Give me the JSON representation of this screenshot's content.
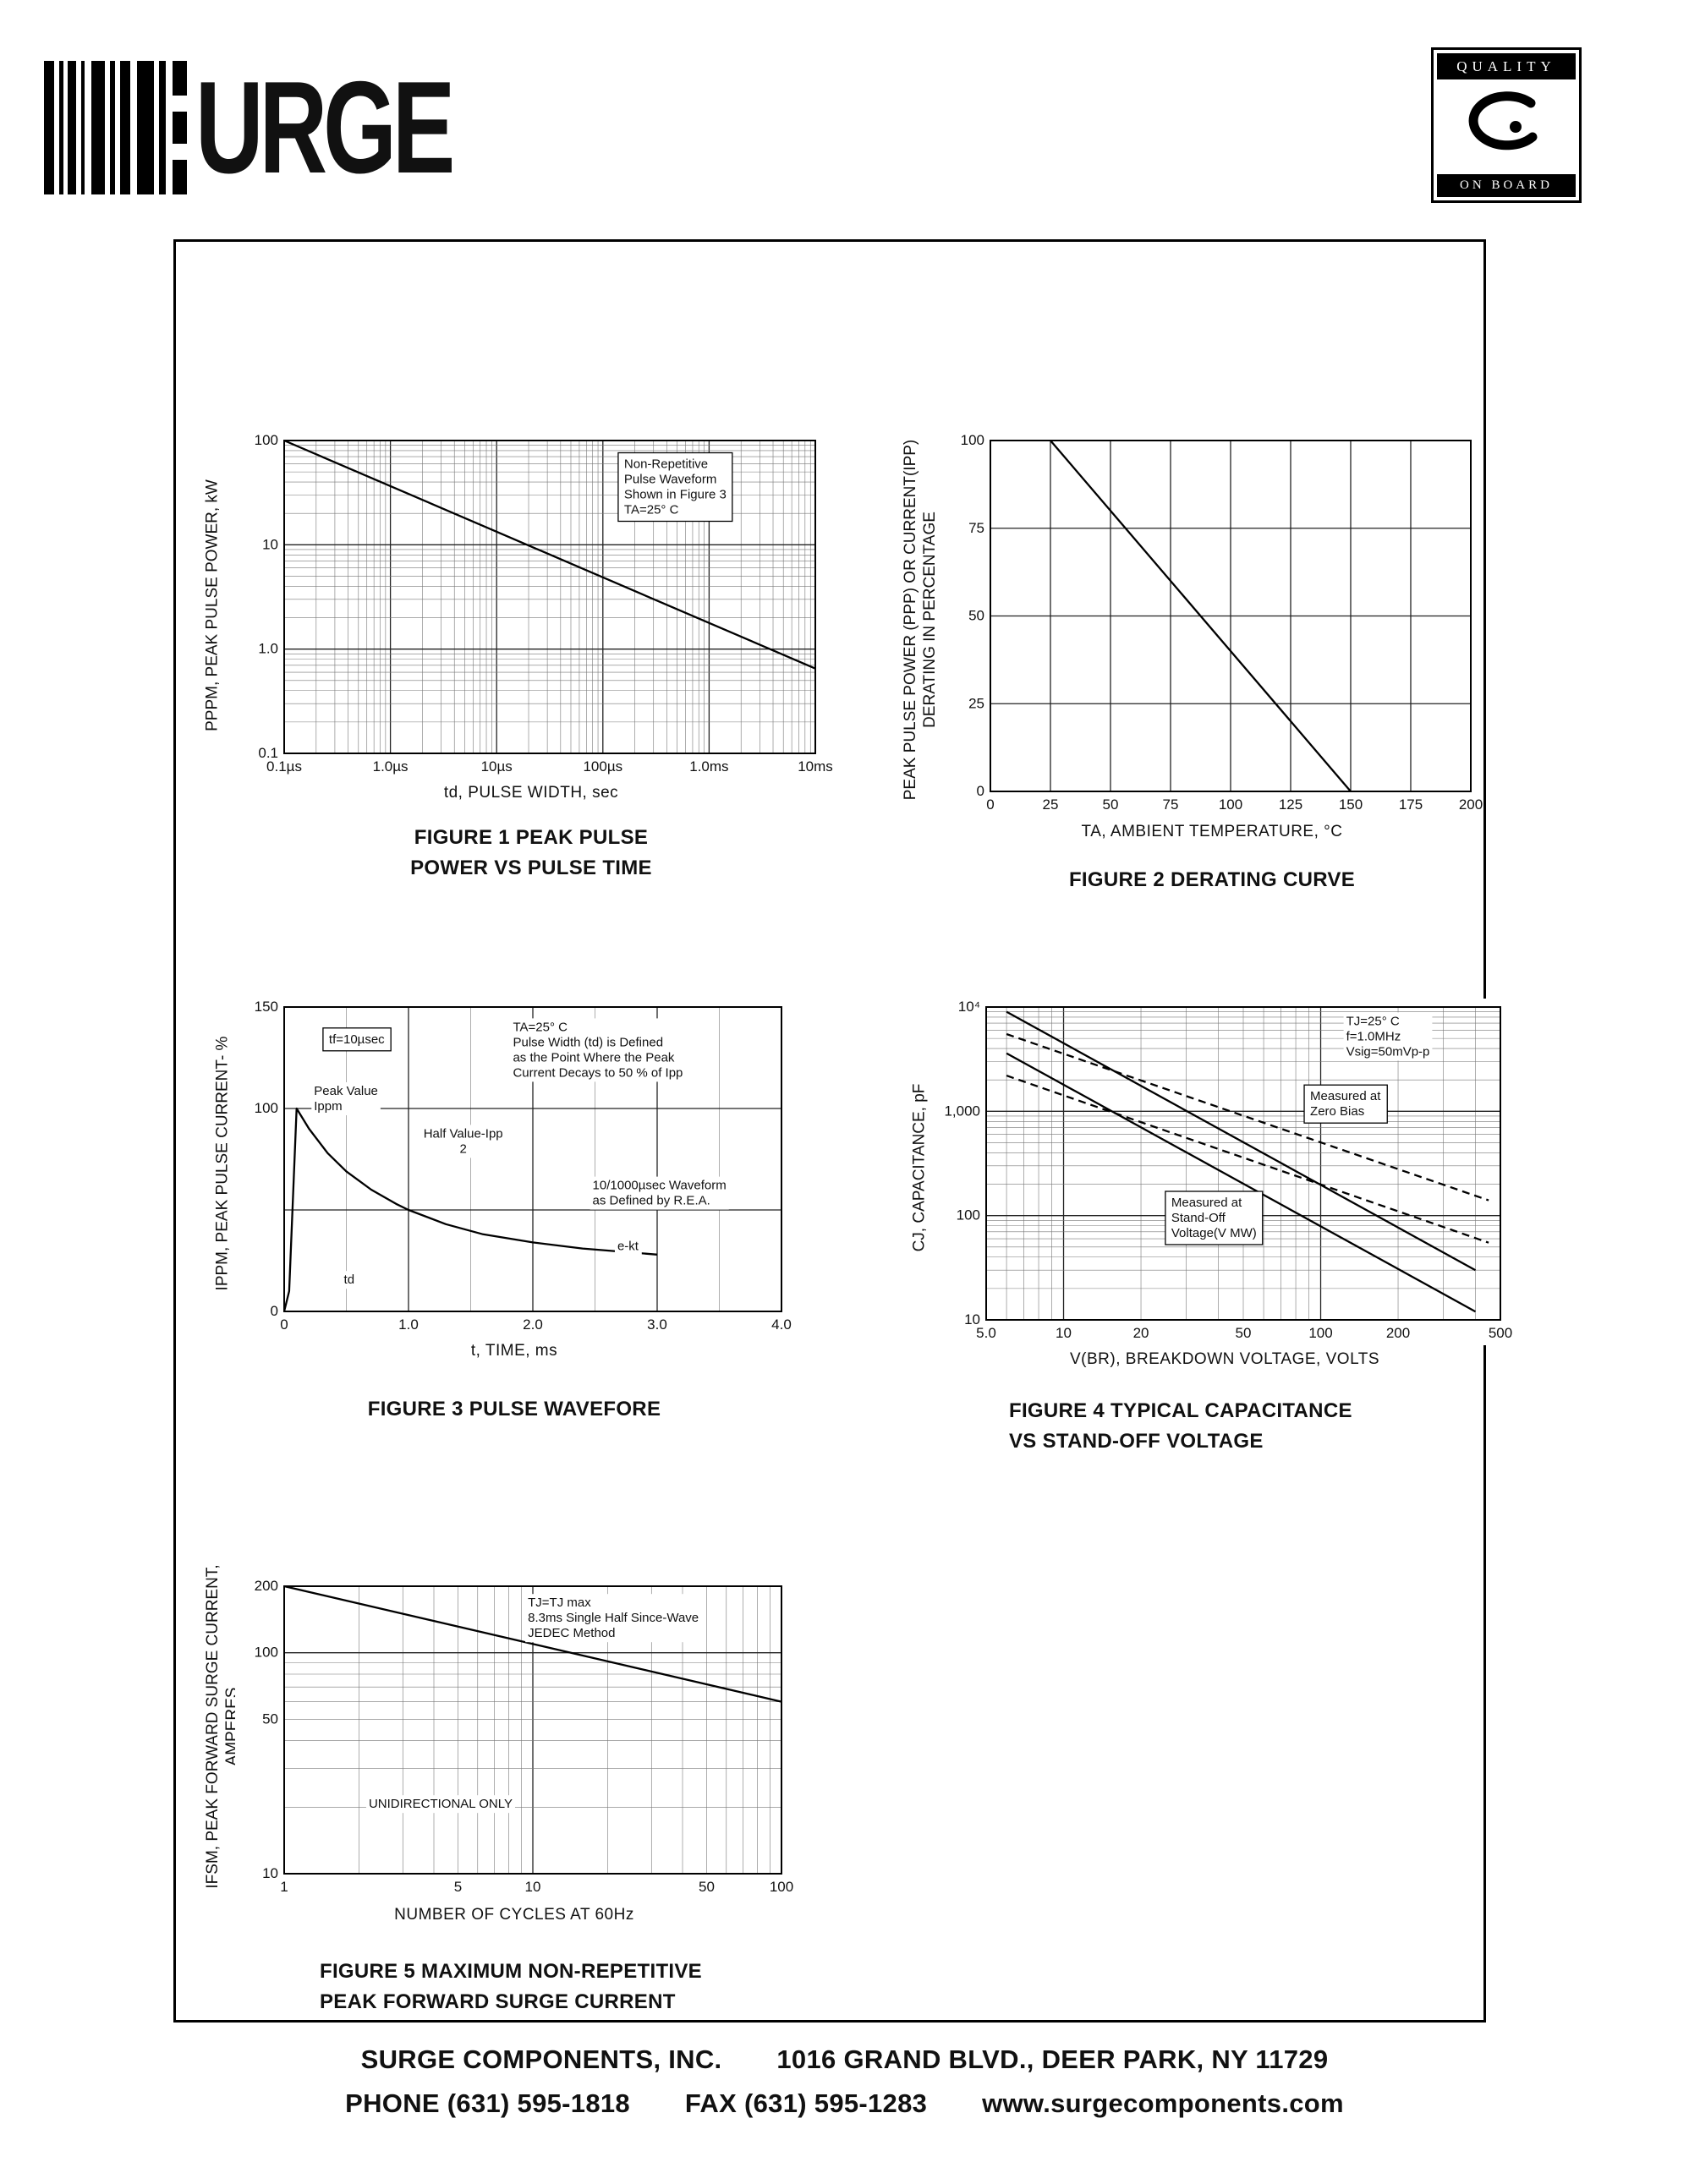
{
  "header": {
    "logo_text": "URGE",
    "badge_top": "QUALITY",
    "badge_bottom": "ON BOARD"
  },
  "footer": {
    "company": "SURGE COMPONENTS, INC.",
    "address": "1016 GRAND BLVD., DEER PARK, NY  11729",
    "phone": "PHONE (631) 595-1818",
    "fax": "FAX (631) 595-1283",
    "website": "www.surgecomponents.com"
  },
  "chart_data": [
    {
      "type": "line",
      "title": "FIGURE 1 PEAK PULSE POWER VS PULSE TIME",
      "caption_lines": [
        "FIGURE 1 PEAK PULSE",
        "POWER VS PULSE TIME"
      ],
      "xlabel": "td, PULSE WIDTH, sec",
      "ylabel_lines": [
        "PPPM, PEAK PULSE POWER, kW"
      ],
      "x": {
        "scale": "log",
        "min": 1e-07,
        "max": 0.01,
        "ticks": [
          {
            "v": 1e-07,
            "l": "0.1µs"
          },
          {
            "v": 1e-06,
            "l": "1.0µs"
          },
          {
            "v": 1e-05,
            "l": "10µs"
          },
          {
            "v": 0.0001,
            "l": "100µs"
          },
          {
            "v": 0.001,
            "l": "1.0ms"
          },
          {
            "v": 0.01,
            "l": "10ms"
          }
        ]
      },
      "y": {
        "scale": "log",
        "min": 0.1,
        "max": 100,
        "ticks": [
          {
            "v": 0.1,
            "l": "0.1"
          },
          {
            "v": 1,
            "l": "1.0"
          },
          {
            "v": 10,
            "l": "10"
          },
          {
            "v": 100,
            "l": "100"
          }
        ]
      },
      "series": [
        {
          "name": "non-repetitive peak pulse power",
          "dash": false,
          "points": [
            [
              1e-07,
              100
            ],
            [
              0.01,
              0.65
            ]
          ]
        }
      ],
      "annotations": [
        {
          "fx": 0.64,
          "fy": 0.05,
          "box": true,
          "lines": [
            "Non-Repetitive",
            "Pulse Waveform",
            "Shown in Figure 3",
            "TA=25° C"
          ]
        }
      ]
    },
    {
      "type": "line",
      "title": "FIGURE 2 DERATING CURVE",
      "caption_lines": [
        "FIGURE 2 DERATING CURVE"
      ],
      "xlabel": "TA, AMBIENT  TEMPERATURE, °C",
      "ylabel_lines": [
        "PEAK PULSE POWER (PPP) OR CURRENT(IPP)",
        "DERATING IN PERCENTAGE"
      ],
      "x": {
        "scale": "linear",
        "min": 0,
        "max": 200,
        "grid": 25,
        "majorEvery": 25,
        "ticks": [
          {
            "v": 0,
            "l": "0"
          },
          {
            "v": 25,
            "l": "25"
          },
          {
            "v": 50,
            "l": "50"
          },
          {
            "v": 75,
            "l": "75"
          },
          {
            "v": 100,
            "l": "100"
          },
          {
            "v": 125,
            "l": "125"
          },
          {
            "v": 150,
            "l": "150"
          },
          {
            "v": 175,
            "l": "175"
          },
          {
            "v": 200,
            "l": "200"
          }
        ]
      },
      "y": {
        "scale": "linear",
        "min": 0,
        "max": 100,
        "grid": 25,
        "majorEvery": 25,
        "ticks": [
          {
            "v": 0,
            "l": "0"
          },
          {
            "v": 25,
            "l": "25"
          },
          {
            "v": 50,
            "l": "50"
          },
          {
            "v": 75,
            "l": "75"
          },
          {
            "v": 100,
            "l": "100"
          }
        ]
      },
      "series": [
        {
          "name": "derating curve",
          "dash": false,
          "points": [
            [
              25,
              100
            ],
            [
              150,
              0
            ]
          ]
        }
      ],
      "annotations": []
    },
    {
      "type": "line",
      "title": "FIGURE 3 PULSE WAVEFORE",
      "caption_lines": [
        "FIGURE 3 PULSE WAVEFORE"
      ],
      "xlabel": "t, TIME, ms",
      "ylabel_lines": [
        "IPPM, PEAK PULSE CURRENT- %"
      ],
      "x": {
        "scale": "linear",
        "min": 0,
        "max": 4,
        "grid": 0.5,
        "majorEvery": 1,
        "ticks": [
          {
            "v": 0,
            "l": "0"
          },
          {
            "v": 1,
            "l": "1.0"
          },
          {
            "v": 2,
            "l": "2.0"
          },
          {
            "v": 3,
            "l": "3.0"
          },
          {
            "v": 4,
            "l": "4.0"
          }
        ]
      },
      "y": {
        "scale": "linear",
        "min": 0,
        "max": 150,
        "grid": 50,
        "majorEvery": 50,
        "ticks": [
          {
            "v": 0,
            "l": "0"
          },
          {
            "v": 100,
            "l": "100"
          },
          {
            "v": 150,
            "l": "150"
          }
        ]
      },
      "series": [
        {
          "name": "10/1000µsec pulse waveform",
          "dash": false,
          "points": [
            [
              0,
              0
            ],
            [
              0.04,
              10
            ],
            [
              0.1,
              100
            ],
            [
              0.2,
              90
            ],
            [
              0.35,
              78
            ],
            [
              0.5,
              69
            ],
            [
              0.7,
              60
            ],
            [
              0.9,
              53
            ],
            [
              1.0,
              50
            ],
            [
              1.3,
              43
            ],
            [
              1.6,
              38
            ],
            [
              2.0,
              34
            ],
            [
              2.4,
              31
            ],
            [
              2.8,
              29
            ],
            [
              3.0,
              28
            ]
          ]
        }
      ],
      "annotations": [
        {
          "fx": 0.09,
          "fy": 0.08,
          "box": true,
          "lines": [
            "tf=10µsec"
          ]
        },
        {
          "fx": 0.06,
          "fy": 0.25,
          "lines": [
            "Peak Value",
            "Ippm"
          ]
        },
        {
          "fx": 0.36,
          "fy": 0.39,
          "align": "center",
          "lines": [
            "Half Value-Ipp",
            "2"
          ]
        },
        {
          "fx": 0.46,
          "fy": 0.04,
          "lines": [
            "TA=25° C",
            "Pulse Width (td) is Defined",
            "as the Point Where the Peak",
            "Current Decays to 50 % of Ipp"
          ]
        },
        {
          "fx": 0.62,
          "fy": 0.56,
          "lines": [
            "10/1000µsec Waveform",
            "as Defined by R.E.A."
          ]
        },
        {
          "fx": 0.67,
          "fy": 0.76,
          "lines": [
            "e-kt"
          ]
        },
        {
          "fx": 0.12,
          "fy": 0.87,
          "lines": [
            "td"
          ]
        }
      ]
    },
    {
      "type": "line",
      "title": "FIGURE 4 TYPICAL CAPACITANCE VS STAND-OFF VOLTAGE",
      "caption_lines": [
        "FIGURE 4 TYPICAL CAPACITANCE",
        "VS STAND-OFF VOLTAGE"
      ],
      "xlabel": "V(BR), BREAKDOWN VOLTAGE, VOLTS",
      "ylabel_lines": [
        "CJ, CAPACITANCE, pF"
      ],
      "x": {
        "scale": "log",
        "min": 5,
        "max": 500,
        "ticks": [
          {
            "v": 5,
            "l": "5.0"
          },
          {
            "v": 10,
            "l": "10"
          },
          {
            "v": 20,
            "l": "20"
          },
          {
            "v": 50,
            "l": "50"
          },
          {
            "v": 100,
            "l": "100"
          },
          {
            "v": 200,
            "l": "200"
          },
          {
            "v": 500,
            "l": "500"
          }
        ]
      },
      "y": {
        "scale": "log",
        "min": 10,
        "max": 10000,
        "ticks": [
          {
            "v": 10,
            "l": "10"
          },
          {
            "v": 100,
            "l": "100"
          },
          {
            "v": 1000,
            "l": "1,000"
          },
          {
            "v": 10000,
            "l": "10⁴"
          }
        ]
      },
      "series": [
        {
          "name": "measured at zero bias (upper)",
          "dash": true,
          "points": [
            [
              6,
              5500
            ],
            [
              450,
              140
            ]
          ]
        },
        {
          "name": "measured at zero bias (lower)",
          "dash": true,
          "points": [
            [
              6,
              2200
            ],
            [
              450,
              55
            ]
          ]
        },
        {
          "name": "measured at stand-off voltage (upper)",
          "dash": false,
          "points": [
            [
              6,
              9000
            ],
            [
              400,
              30
            ]
          ]
        },
        {
          "name": "measured at stand-off voltage (lower)",
          "dash": false,
          "points": [
            [
              6,
              3600
            ],
            [
              400,
              12
            ]
          ]
        }
      ],
      "annotations": [
        {
          "fx": 0.7,
          "fy": 0.02,
          "lines": [
            "TJ=25° C",
            "f=1.0MHz",
            "Vsig=50mVp-p"
          ]
        },
        {
          "fx": 0.63,
          "fy": 0.26,
          "box": true,
          "lines": [
            "Measured at",
            "Zero Bias"
          ]
        },
        {
          "fx": 0.36,
          "fy": 0.6,
          "box": true,
          "lines": [
            "Measured at",
            "Stand-Off",
            "Voltage(V MW)"
          ]
        }
      ]
    },
    {
      "type": "line",
      "title": "FIGURE 5 MAXIMUM NON-REPETITIVE PEAK FORWARD SURGE CURRENT",
      "caption_lines": [
        "FIGURE 5 MAXIMUM NON-REPETITIVE",
        "PEAK FORWARD SURGE CURRENT"
      ],
      "xlabel": "NUMBER  OF  CYCLES  AT  60Hz",
      "ylabel_lines": [
        "IFSM, PEAK FORWARD SURGE CURRENT,",
        "AMPERES"
      ],
      "x": {
        "scale": "log",
        "min": 1,
        "max": 100,
        "ticks": [
          {
            "v": 1,
            "l": "1"
          },
          {
            "v": 5,
            "l": "5"
          },
          {
            "v": 10,
            "l": "10"
          },
          {
            "v": 50,
            "l": "50"
          },
          {
            "v": 100,
            "l": "100"
          }
        ]
      },
      "y": {
        "scale": "log",
        "min": 10,
        "max": 200,
        "ticks": [
          {
            "v": 10,
            "l": "10"
          },
          {
            "v": 50,
            "l": "50"
          },
          {
            "v": 100,
            "l": "100"
          },
          {
            "v": 200,
            "l": "200"
          }
        ]
      },
      "series": [
        {
          "name": "peak forward surge current",
          "dash": false,
          "points": [
            [
              1,
              200
            ],
            [
              100,
              60
            ]
          ]
        }
      ],
      "annotations": [
        {
          "fx": 0.49,
          "fy": 0.03,
          "lines": [
            "TJ=TJ max",
            "8.3ms Single Half Since-Wave",
            "JEDEC Method"
          ]
        },
        {
          "fx": 0.17,
          "fy": 0.73,
          "lines": [
            "UNIDIRECTIONAL ONLY"
          ]
        }
      ]
    }
  ]
}
